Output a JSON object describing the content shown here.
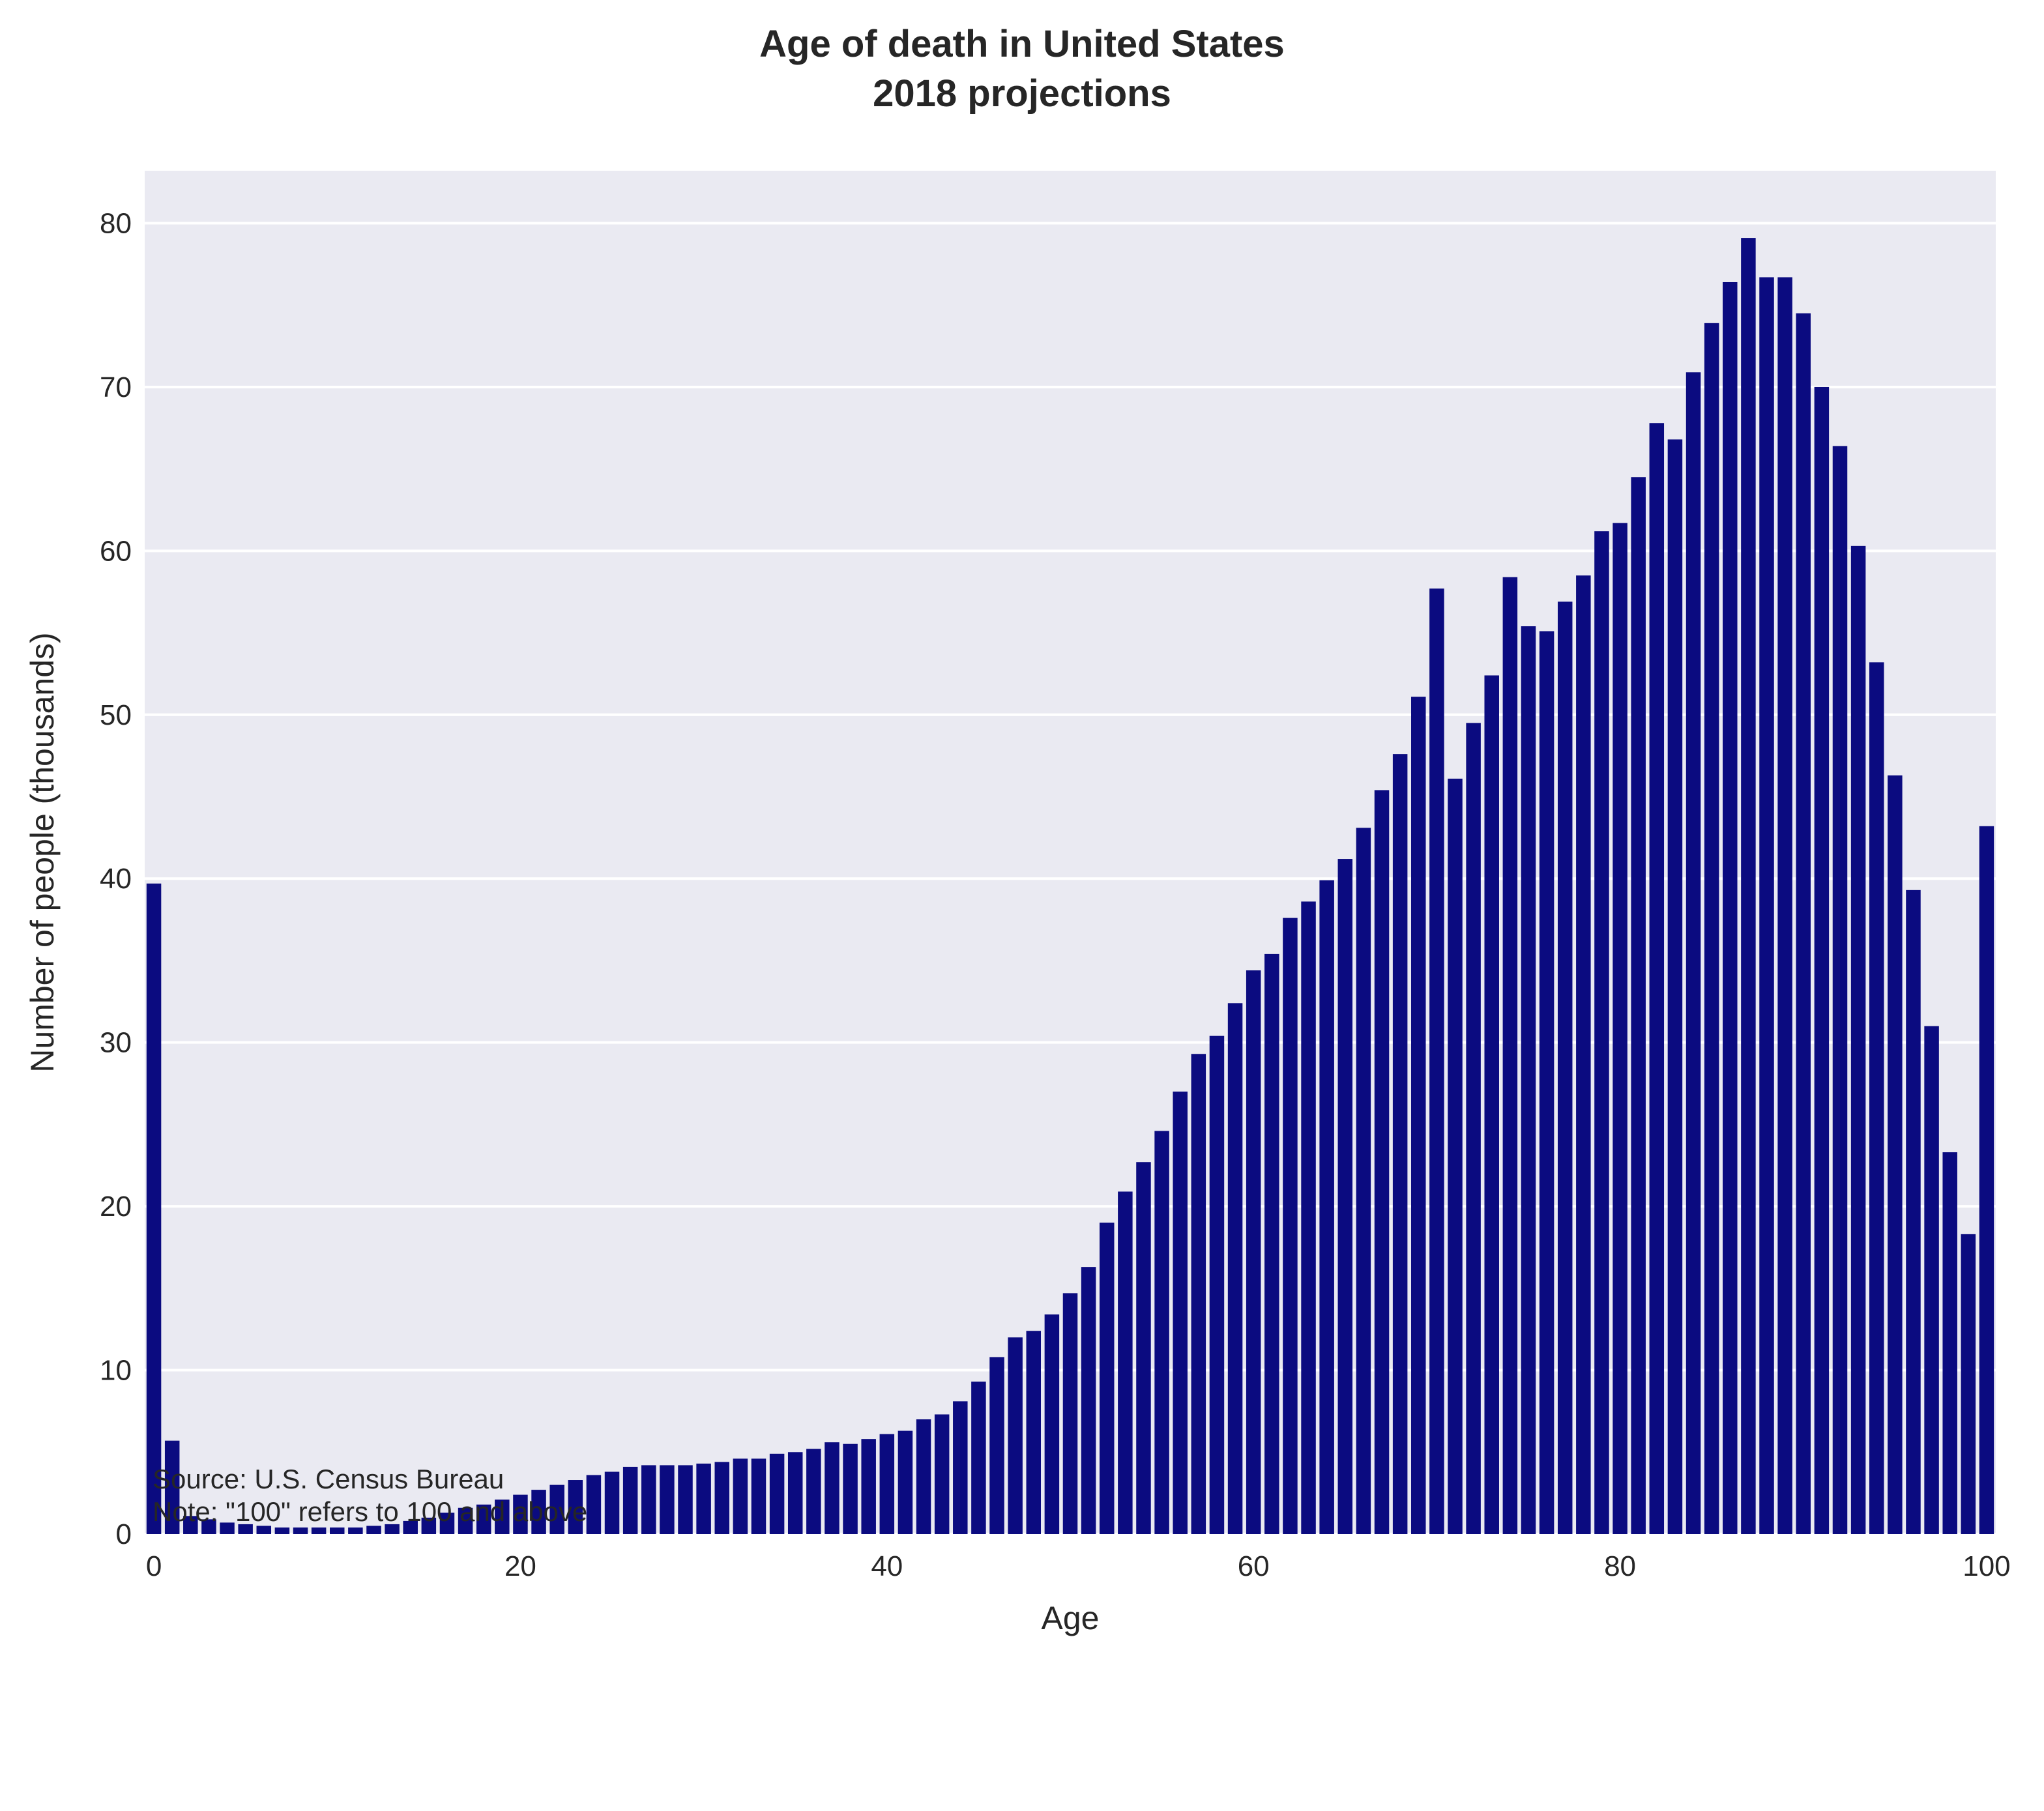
{
  "chart_data": {
    "type": "bar",
    "title": "Age of death in United States",
    "subtitle": "2018 projections",
    "xlabel": "Age",
    "ylabel": "Number of people (thousands)",
    "ylim": [
      0,
      83.2
    ],
    "xlim": [
      -0.5,
      100.5
    ],
    "yticks": [
      0,
      10,
      20,
      30,
      40,
      50,
      60,
      70,
      80
    ],
    "xticks": [
      0,
      20,
      40,
      60,
      80,
      100
    ],
    "grid": true,
    "background": "#EAEAF2",
    "gridColor": "#FFFFFF",
    "barColor": "#0B0B80",
    "categories": [
      0,
      1,
      2,
      3,
      4,
      5,
      6,
      7,
      8,
      9,
      10,
      11,
      12,
      13,
      14,
      15,
      16,
      17,
      18,
      19,
      20,
      21,
      22,
      23,
      24,
      25,
      26,
      27,
      28,
      29,
      30,
      31,
      32,
      33,
      34,
      35,
      36,
      37,
      38,
      39,
      40,
      41,
      42,
      43,
      44,
      45,
      46,
      47,
      48,
      49,
      50,
      51,
      52,
      53,
      54,
      55,
      56,
      57,
      58,
      59,
      60,
      61,
      62,
      63,
      64,
      65,
      66,
      67,
      68,
      69,
      70,
      71,
      72,
      73,
      74,
      75,
      76,
      77,
      78,
      79,
      80,
      81,
      82,
      83,
      84,
      85,
      86,
      87,
      88,
      89,
      90,
      91,
      92,
      93,
      94,
      95,
      96,
      97,
      98,
      99,
      100
    ],
    "values": [
      39.7,
      5.7,
      1.1,
      0.9,
      0.7,
      0.6,
      0.5,
      0.4,
      0.4,
      0.4,
      0.4,
      0.4,
      0.5,
      0.6,
      0.8,
      1.0,
      1.3,
      1.6,
      1.8,
      2.1,
      2.4,
      2.7,
      3.0,
      3.3,
      3.6,
      3.8,
      4.1,
      4.2,
      4.2,
      4.2,
      4.3,
      4.4,
      4.6,
      4.6,
      4.9,
      5.0,
      5.2,
      5.6,
      5.5,
      5.8,
      6.1,
      6.3,
      7.0,
      7.3,
      8.1,
      9.3,
      10.8,
      12.0,
      12.4,
      13.4,
      14.7,
      16.3,
      19.0,
      20.9,
      22.7,
      24.6,
      27.0,
      29.3,
      30.4,
      32.4,
      34.4,
      35.4,
      37.6,
      38.6,
      39.9,
      41.2,
      43.1,
      45.4,
      47.6,
      51.1,
      57.7,
      46.1,
      49.5,
      52.4,
      58.4,
      55.4,
      55.1,
      56.9,
      58.5,
      61.2,
      61.7,
      64.5,
      67.8,
      66.8,
      70.9,
      73.9,
      76.4,
      79.1,
      76.7,
      76.7,
      74.5,
      70.0,
      66.4,
      60.3,
      53.2,
      46.3,
      39.3,
      31.0,
      23.3,
      18.3,
      43.2
    ]
  },
  "footer": {
    "source": "Source: U.S. Census Bureau",
    "note": "Note: \"100\" refers to 100 and above"
  }
}
